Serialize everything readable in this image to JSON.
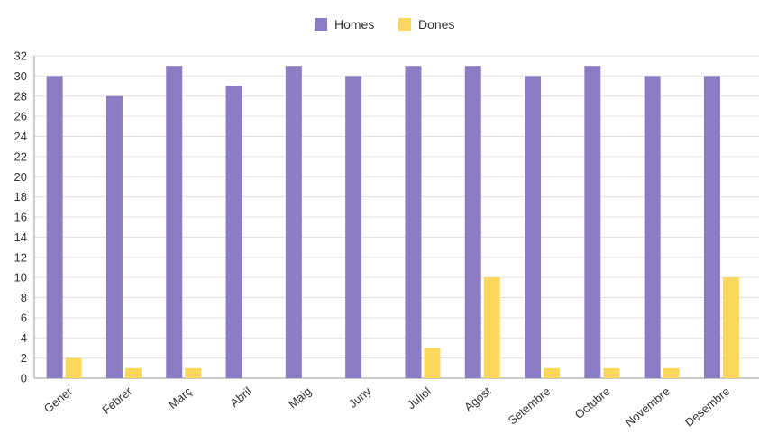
{
  "chart_data": {
    "type": "bar",
    "categories": [
      "Gener",
      "Febrer",
      "Març",
      "Abril",
      "Maig",
      "Juny",
      "Juliol",
      "Agost",
      "Setembre",
      "Octubre",
      "Novembre",
      "Desembre"
    ],
    "series": [
      {
        "name": "Homes",
        "color": "#8b7cc3",
        "values": [
          30,
          28,
          31,
          29,
          31,
          30,
          31,
          31,
          30,
          31,
          30,
          30
        ]
      },
      {
        "name": "Dones",
        "color": "#fbd75b",
        "values": [
          2,
          1,
          1,
          0,
          0,
          0,
          3,
          10,
          1,
          1,
          1,
          10
        ]
      }
    ],
    "yticks": [
      "0",
      "2",
      "4",
      "6",
      "8",
      "10",
      "12",
      "14",
      "16",
      "18",
      "20",
      "22",
      "24",
      "26",
      "28",
      "30",
      "32"
    ],
    "ylim": [
      0,
      32
    ],
    "grid": true,
    "legend_position": "top-center"
  }
}
